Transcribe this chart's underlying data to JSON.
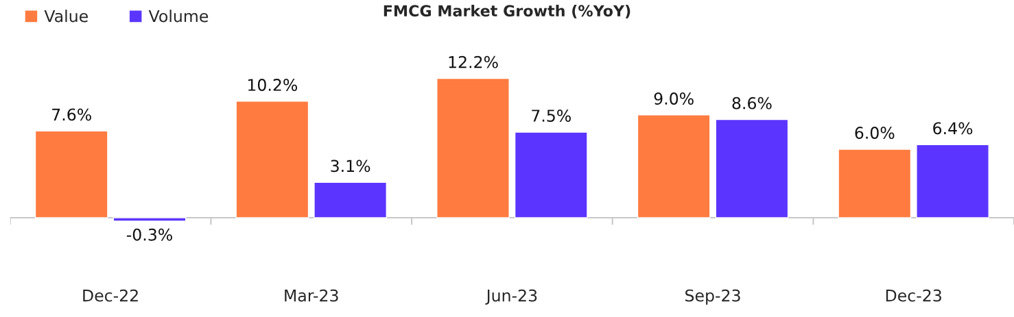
{
  "chart_data": {
    "type": "bar",
    "title": "FMCG Market Growth (%YoY)",
    "categories": [
      "Dec-22",
      "Mar-23",
      "Jun-23",
      "Sep-23",
      "Dec-23"
    ],
    "series": [
      {
        "name": "Value",
        "color": "#ff7b40",
        "values": [
          7.6,
          10.2,
          12.2,
          9.0,
          6.0
        ],
        "value_labels": [
          "7.6%",
          "10.2%",
          "12.2%",
          "9.0%",
          "6.0%"
        ]
      },
      {
        "name": "Volume",
        "color": "#5b35ff",
        "values": [
          -0.3,
          3.1,
          7.5,
          8.6,
          6.4
        ],
        "value_labels": [
          "-0.3%",
          "3.1%",
          "7.5%",
          "8.6%",
          "6.4%"
        ]
      }
    ],
    "legend": "top left",
    "grid": false
  }
}
